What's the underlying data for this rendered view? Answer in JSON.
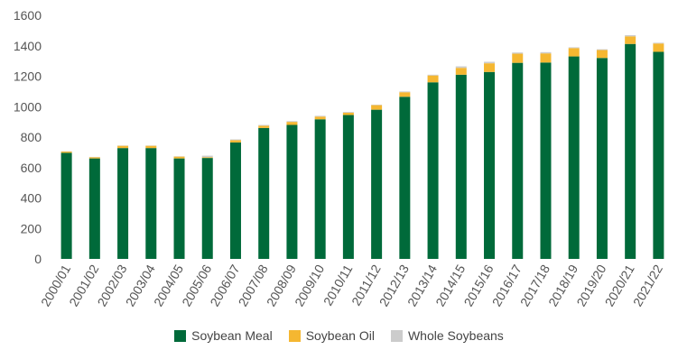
{
  "chart_data": {
    "type": "bar",
    "stacked": true,
    "title": "",
    "xlabel": "",
    "ylabel": "",
    "ylim": [
      0,
      1600
    ],
    "yticks": [
      0,
      200,
      400,
      600,
      800,
      1000,
      1200,
      1400,
      1600
    ],
    "ytick_labels": [
      "0",
      "200",
      "400",
      "600",
      "800",
      "1000",
      "1200",
      "1400",
      "1600"
    ],
    "grid": false,
    "legend_position": "bottom-center",
    "categories": [
      "2000/01",
      "2001/02",
      "2002/03",
      "2003/04",
      "2004/05",
      "2005/06",
      "2006/07",
      "2007/08",
      "2008/09",
      "2009/10",
      "2010/11",
      "2011/12",
      "2012/13",
      "2013/14",
      "2014/15",
      "2015/16",
      "2016/17",
      "2017/18",
      "2018/19",
      "2019/20",
      "2020/21",
      "2021/22"
    ],
    "series": [
      {
        "name": "Soybean Meal",
        "color": "#006a3a",
        "values": [
          697,
          660,
          728,
          728,
          660,
          663,
          765,
          860,
          880,
          917,
          945,
          980,
          1065,
          1160,
          1210,
          1228,
          1288,
          1290,
          1330,
          1320,
          1412,
          1360
        ]
      },
      {
        "name": "Soybean Oil",
        "color": "#f5b731",
        "values": [
          8,
          8,
          15,
          15,
          12,
          5,
          15,
          15,
          20,
          18,
          15,
          30,
          30,
          45,
          45,
          57,
          60,
          60,
          55,
          52,
          50,
          55
        ]
      },
      {
        "name": "Whole Soybeans",
        "color": "#cccccc",
        "values": [
          2,
          2,
          2,
          2,
          2,
          10,
          5,
          5,
          5,
          5,
          5,
          3,
          5,
          5,
          10,
          10,
          8,
          8,
          5,
          5,
          8,
          5
        ]
      }
    ]
  }
}
